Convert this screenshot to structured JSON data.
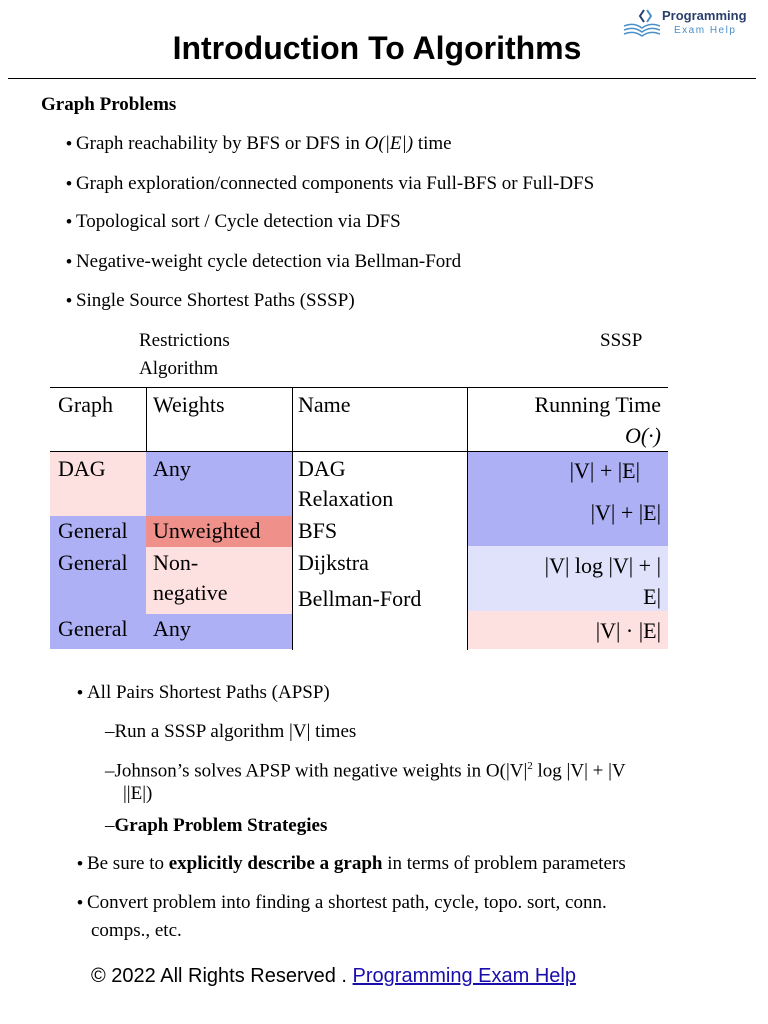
{
  "logo": {
    "title": "Programming",
    "subtitle": "Exam Help"
  },
  "title": "Introduction To Algorithms",
  "section_heading": "Graph Problems",
  "bullets": [
    {
      "pre": "Graph reachability by BFS or DFS in ",
      "math": "O(|E|)",
      "post": " time"
    },
    {
      "text": "Graph exploration/connected components via Full-BFS or Full-DFS"
    },
    {
      "text": "Topological sort / Cycle detection via DFS"
    },
    {
      "text": "Negative-weight cycle detection via Bellman-Ford"
    },
    {
      "text": "Single Source Shortest Paths (SSSP)"
    }
  ],
  "table_caption": {
    "restrictions": "Restrictions",
    "algorithm": "Algorithm",
    "sssp": "SSSP"
  },
  "table": {
    "headers": {
      "graph": "Graph",
      "weights": "Weights",
      "name": "Name",
      "running_time": "Running Time",
      "running_time_o": "O(·)"
    },
    "rows": [
      {
        "graph": "DAG",
        "weights": "Any",
        "name": [
          "DAG",
          "Relaxation"
        ],
        "time": [
          "|V| + |E|"
        ]
      },
      {
        "graph": "General",
        "weights": "Unweighted",
        "name": [
          "BFS"
        ],
        "time": [
          "|V| + |E|"
        ]
      },
      {
        "graph": "General",
        "weights": [
          "Non-",
          "negative"
        ],
        "name": [
          "Dijkstra"
        ],
        "time": [
          "|V| log |V| + |",
          "E|"
        ]
      },
      {
        "graph": "General",
        "weights": "Any",
        "name": [
          "Bellman-Ford"
        ],
        "time": [
          "|V| · |E|"
        ]
      }
    ]
  },
  "apsp": {
    "bullet": "All Pairs Shortest Paths (APSP)",
    "sub1": "Run a SSSP algorithm |V| times",
    "sub2_line1": "Johnson’s solves APSP with negative weights in O(|V|",
    "sub2_sup": "2",
    "sub2_line1_end": " log |V| + |V",
    "sub2_line2": "||E|)",
    "sub3": "Graph Problem Strategies"
  },
  "strategies": [
    {
      "pre": "Be sure to ",
      "bold": "explicitly describe a graph",
      "post": " in terms of problem parameters"
    },
    {
      "line1": "Convert problem into finding a shortest path, cycle, topo. sort, conn.",
      "line2": "comps., etc."
    }
  ],
  "footer": {
    "text": "© 2022 All Rights Reserved . ",
    "link": "Programming Exam Help "
  },
  "colors": {
    "pink": "#fde0e0",
    "blue": "#aeb0f6",
    "red": "#f0908a",
    "lightblue": "#e0e1fb"
  }
}
